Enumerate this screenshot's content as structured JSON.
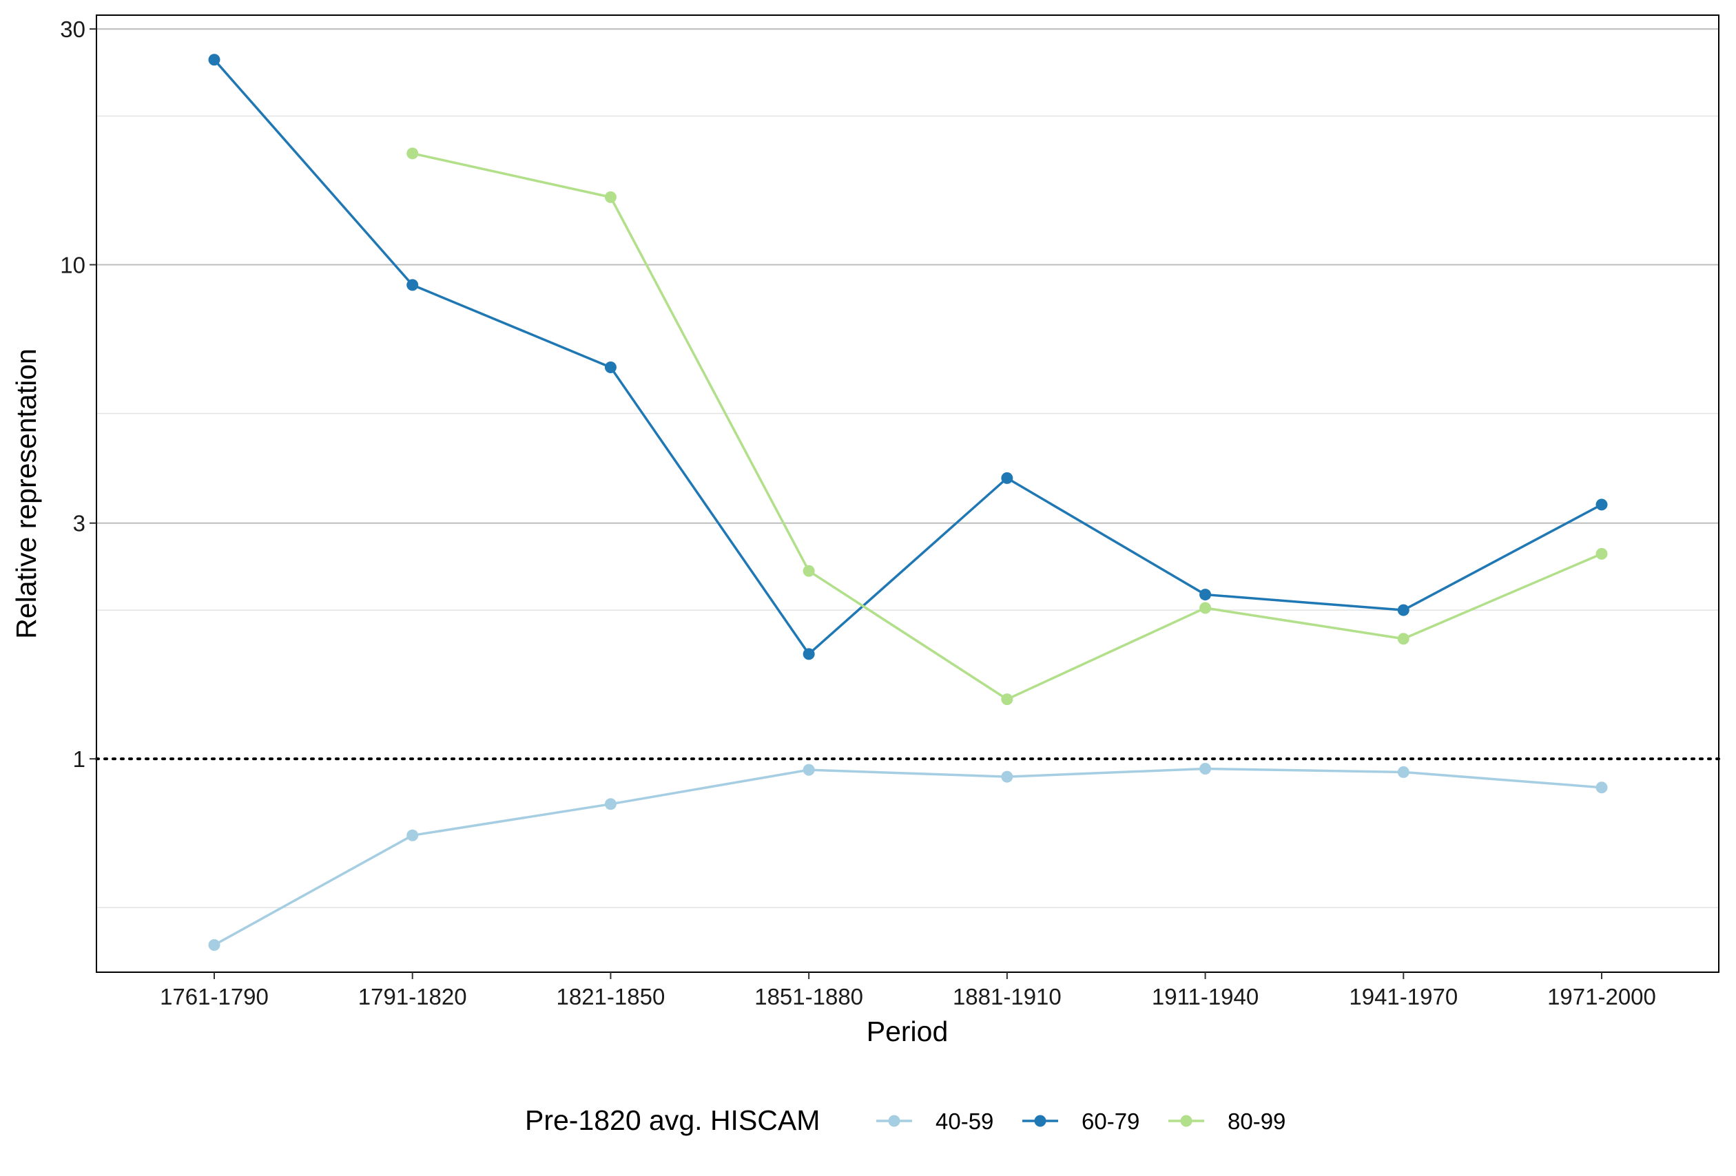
{
  "chart_data": {
    "type": "line",
    "xlabel": "Period",
    "ylabel": "Relative representation",
    "y_scale": "log",
    "ylim": [
      0.37,
      32
    ],
    "y_ticks": [
      1,
      3,
      10,
      30
    ],
    "y_tick_labels": [
      "1",
      "3",
      "10",
      "30"
    ],
    "y_minor_gridlines": [
      0.5,
      2,
      5,
      20
    ],
    "reference_line": {
      "value": 1,
      "style": "dotted"
    },
    "grid": true,
    "categories": [
      "1761-1790",
      "1791-1820",
      "1821-1850",
      "1851-1880",
      "1881-1910",
      "1911-1940",
      "1941-1970",
      "1971-2000"
    ],
    "legend": {
      "title": "Pre-1820 avg. HISCAM",
      "placement": "bottom"
    },
    "series": [
      {
        "name": "40-59",
        "color": "#a6cee3",
        "values": [
          0.42,
          0.7,
          0.81,
          0.95,
          0.92,
          0.955,
          0.94,
          0.875
        ]
      },
      {
        "name": "60-79",
        "color": "#1f78b4",
        "values": [
          26.0,
          9.1,
          6.2,
          1.63,
          3.7,
          2.15,
          2.0,
          3.27
        ]
      },
      {
        "name": "80-99",
        "color": "#b2df8a",
        "values": [
          null,
          16.8,
          13.7,
          2.4,
          1.32,
          2.02,
          1.75,
          2.6
        ]
      }
    ]
  }
}
